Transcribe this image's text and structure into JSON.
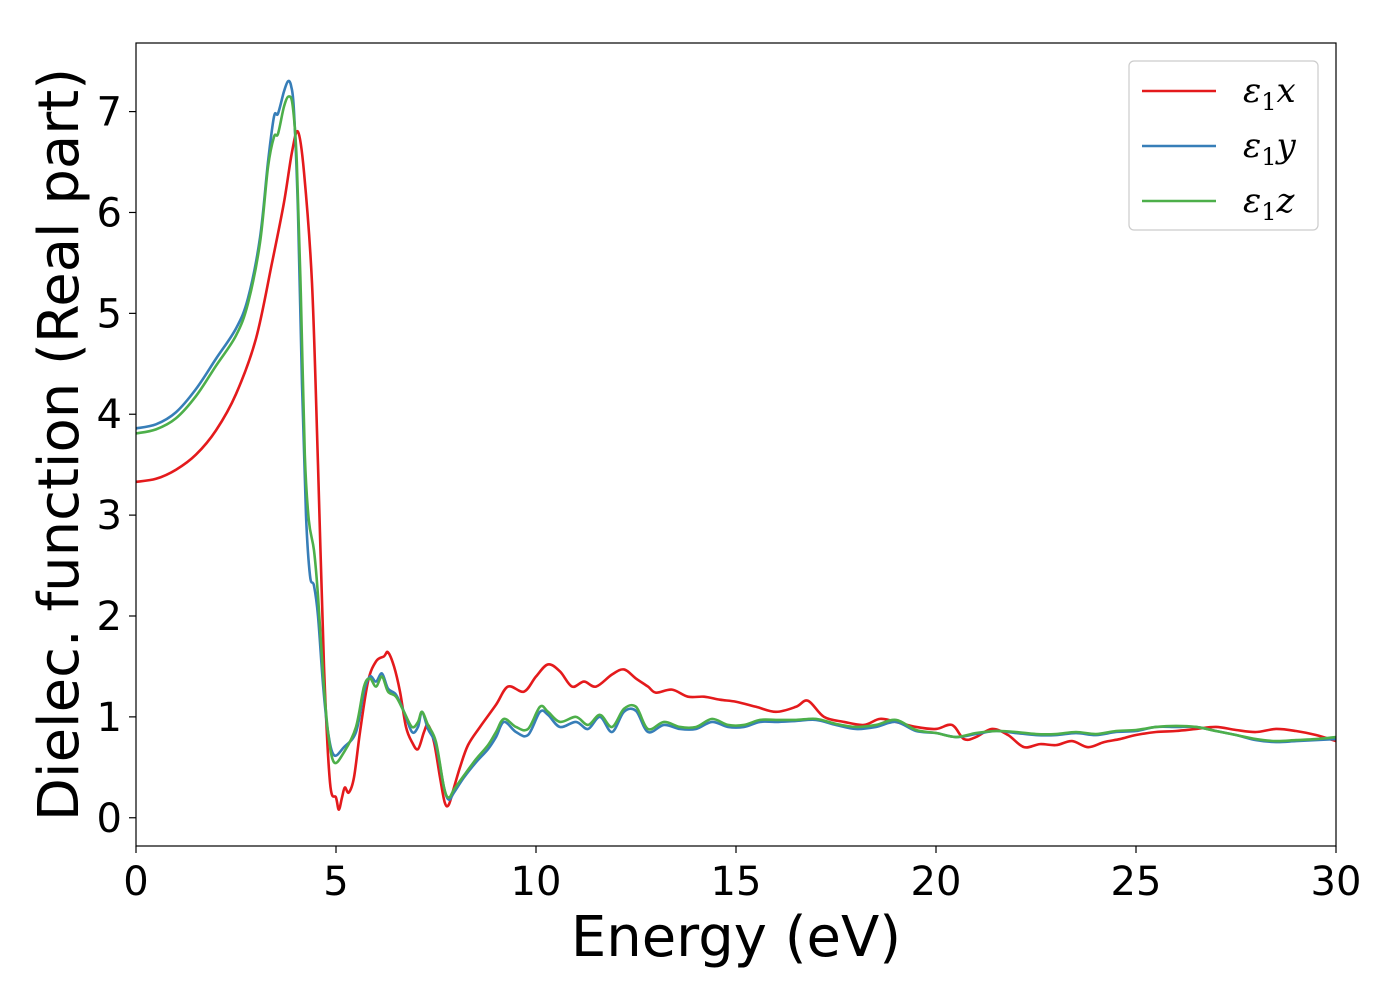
{
  "chart_data": {
    "type": "line",
    "xlabel": "Energy (eV)",
    "ylabel": "Dielec. function (Real part)",
    "xlim": [
      0,
      30
    ],
    "ylim": [
      -0.28,
      7.68
    ],
    "xticks": [
      0,
      5,
      10,
      15,
      20,
      25,
      30
    ],
    "yticks": [
      0,
      1,
      2,
      3,
      4,
      5,
      6,
      7
    ],
    "grid": false,
    "legend_position": "top-right",
    "series": [
      {
        "name": "ε1x",
        "legend": {
          "base": "ε",
          "sub": "1",
          "var": "x"
        },
        "color": "#e41a1c",
        "points": [
          [
            0,
            3.33
          ],
          [
            0.5,
            3.36
          ],
          [
            1.0,
            3.45
          ],
          [
            1.5,
            3.6
          ],
          [
            2.0,
            3.84
          ],
          [
            2.5,
            4.2
          ],
          [
            3.0,
            4.75
          ],
          [
            3.4,
            5.5
          ],
          [
            3.7,
            6.1
          ],
          [
            3.9,
            6.6
          ],
          [
            4.05,
            6.8
          ],
          [
            4.2,
            6.4
          ],
          [
            4.4,
            5.3
          ],
          [
            4.55,
            3.5
          ],
          [
            4.7,
            1.5
          ],
          [
            4.85,
            0.35
          ],
          [
            5.0,
            0.2
          ],
          [
            5.07,
            0.08
          ],
          [
            5.15,
            0.2
          ],
          [
            5.22,
            0.3
          ],
          [
            5.32,
            0.25
          ],
          [
            5.45,
            0.4
          ],
          [
            5.6,
            0.85
          ],
          [
            5.8,
            1.35
          ],
          [
            6.0,
            1.55
          ],
          [
            6.2,
            1.6
          ],
          [
            6.3,
            1.64
          ],
          [
            6.45,
            1.5
          ],
          [
            6.6,
            1.25
          ],
          [
            6.75,
            0.9
          ],
          [
            6.9,
            0.75
          ],
          [
            7.05,
            0.68
          ],
          [
            7.2,
            0.85
          ],
          [
            7.3,
            0.92
          ],
          [
            7.45,
            0.75
          ],
          [
            7.6,
            0.4
          ],
          [
            7.72,
            0.15
          ],
          [
            7.82,
            0.13
          ],
          [
            7.95,
            0.3
          ],
          [
            8.1,
            0.5
          ],
          [
            8.3,
            0.72
          ],
          [
            8.6,
            0.9
          ],
          [
            9.0,
            1.12
          ],
          [
            9.3,
            1.3
          ],
          [
            9.7,
            1.25
          ],
          [
            10.0,
            1.4
          ],
          [
            10.3,
            1.52
          ],
          [
            10.6,
            1.45
          ],
          [
            10.9,
            1.3
          ],
          [
            11.2,
            1.35
          ],
          [
            11.5,
            1.3
          ],
          [
            11.9,
            1.42
          ],
          [
            12.2,
            1.47
          ],
          [
            12.5,
            1.38
          ],
          [
            12.8,
            1.3
          ],
          [
            13.0,
            1.24
          ],
          [
            13.4,
            1.27
          ],
          [
            13.8,
            1.2
          ],
          [
            14.2,
            1.2
          ],
          [
            14.6,
            1.17
          ],
          [
            15.0,
            1.15
          ],
          [
            15.5,
            1.1
          ],
          [
            16.0,
            1.05
          ],
          [
            16.5,
            1.1
          ],
          [
            16.8,
            1.16
          ],
          [
            17.2,
            1.0
          ],
          [
            17.7,
            0.95
          ],
          [
            18.2,
            0.92
          ],
          [
            18.6,
            0.98
          ],
          [
            19.0,
            0.95
          ],
          [
            19.5,
            0.9
          ],
          [
            20.0,
            0.88
          ],
          [
            20.4,
            0.92
          ],
          [
            20.7,
            0.78
          ],
          [
            21.0,
            0.8
          ],
          [
            21.4,
            0.88
          ],
          [
            21.8,
            0.82
          ],
          [
            22.2,
            0.7
          ],
          [
            22.6,
            0.73
          ],
          [
            23.0,
            0.72
          ],
          [
            23.4,
            0.76
          ],
          [
            23.8,
            0.7
          ],
          [
            24.2,
            0.75
          ],
          [
            24.6,
            0.78
          ],
          [
            25.0,
            0.82
          ],
          [
            25.5,
            0.85
          ],
          [
            26.0,
            0.86
          ],
          [
            26.5,
            0.88
          ],
          [
            27.0,
            0.9
          ],
          [
            27.5,
            0.87
          ],
          [
            28.0,
            0.85
          ],
          [
            28.5,
            0.88
          ],
          [
            29.0,
            0.86
          ],
          [
            29.5,
            0.82
          ],
          [
            30.0,
            0.76
          ]
        ]
      },
      {
        "name": "ε1y",
        "legend": {
          "base": "ε",
          "sub": "1",
          "var": "y"
        },
        "color": "#377eb8",
        "points": [
          [
            0,
            3.86
          ],
          [
            0.5,
            3.9
          ],
          [
            1.0,
            4.02
          ],
          [
            1.5,
            4.25
          ],
          [
            2.0,
            4.55
          ],
          [
            2.5,
            4.85
          ],
          [
            2.8,
            5.15
          ],
          [
            3.1,
            5.75
          ],
          [
            3.3,
            6.5
          ],
          [
            3.45,
            6.95
          ],
          [
            3.55,
            6.98
          ],
          [
            3.7,
            7.2
          ],
          [
            3.8,
            7.3
          ],
          [
            3.88,
            7.25
          ],
          [
            3.95,
            7.0
          ],
          [
            4.05,
            6.0
          ],
          [
            4.15,
            4.3
          ],
          [
            4.25,
            3.0
          ],
          [
            4.35,
            2.4
          ],
          [
            4.45,
            2.3
          ],
          [
            4.55,
            2.0
          ],
          [
            4.68,
            1.3
          ],
          [
            4.8,
            0.85
          ],
          [
            4.95,
            0.62
          ],
          [
            5.2,
            0.7
          ],
          [
            5.5,
            0.85
          ],
          [
            5.7,
            1.25
          ],
          [
            5.85,
            1.4
          ],
          [
            6.0,
            1.35
          ],
          [
            6.15,
            1.43
          ],
          [
            6.3,
            1.28
          ],
          [
            6.5,
            1.22
          ],
          [
            6.7,
            1.05
          ],
          [
            6.9,
            0.85
          ],
          [
            7.05,
            0.9
          ],
          [
            7.15,
            1.05
          ],
          [
            7.3,
            0.88
          ],
          [
            7.5,
            0.72
          ],
          [
            7.7,
            0.3
          ],
          [
            7.82,
            0.18
          ],
          [
            7.95,
            0.25
          ],
          [
            8.2,
            0.4
          ],
          [
            8.5,
            0.55
          ],
          [
            8.8,
            0.68
          ],
          [
            9.0,
            0.8
          ],
          [
            9.2,
            0.95
          ],
          [
            9.5,
            0.85
          ],
          [
            9.8,
            0.82
          ],
          [
            10.1,
            1.05
          ],
          [
            10.3,
            1.02
          ],
          [
            10.6,
            0.9
          ],
          [
            11.0,
            0.95
          ],
          [
            11.3,
            0.88
          ],
          [
            11.6,
            1.0
          ],
          [
            11.9,
            0.85
          ],
          [
            12.2,
            1.05
          ],
          [
            12.5,
            1.06
          ],
          [
            12.8,
            0.85
          ],
          [
            13.2,
            0.92
          ],
          [
            13.6,
            0.88
          ],
          [
            14.0,
            0.88
          ],
          [
            14.4,
            0.95
          ],
          [
            14.8,
            0.9
          ],
          [
            15.2,
            0.9
          ],
          [
            15.6,
            0.95
          ],
          [
            16.0,
            0.95
          ],
          [
            16.5,
            0.96
          ],
          [
            17.0,
            0.97
          ],
          [
            17.5,
            0.92
          ],
          [
            18.0,
            0.88
          ],
          [
            18.5,
            0.9
          ],
          [
            19.0,
            0.95
          ],
          [
            19.5,
            0.86
          ],
          [
            20.0,
            0.84
          ],
          [
            20.5,
            0.8
          ],
          [
            21.0,
            0.83
          ],
          [
            21.5,
            0.86
          ],
          [
            22.0,
            0.84
          ],
          [
            22.5,
            0.82
          ],
          [
            23.0,
            0.82
          ],
          [
            23.5,
            0.84
          ],
          [
            24.0,
            0.82
          ],
          [
            24.5,
            0.85
          ],
          [
            25.0,
            0.86
          ],
          [
            25.5,
            0.9
          ],
          [
            26.0,
            0.9
          ],
          [
            26.5,
            0.9
          ],
          [
            27.0,
            0.86
          ],
          [
            27.5,
            0.82
          ],
          [
            28.0,
            0.77
          ],
          [
            28.5,
            0.75
          ],
          [
            29.0,
            0.76
          ],
          [
            29.5,
            0.77
          ],
          [
            30.0,
            0.78
          ]
        ]
      },
      {
        "name": "ε1z",
        "legend": {
          "base": "ε",
          "sub": "1",
          "var": "z"
        },
        "color": "#4daf4a",
        "points": [
          [
            0,
            3.81
          ],
          [
            0.5,
            3.85
          ],
          [
            1.0,
            3.96
          ],
          [
            1.5,
            4.18
          ],
          [
            2.0,
            4.48
          ],
          [
            2.5,
            4.78
          ],
          [
            2.8,
            5.1
          ],
          [
            3.1,
            5.7
          ],
          [
            3.3,
            6.45
          ],
          [
            3.45,
            6.75
          ],
          [
            3.55,
            6.78
          ],
          [
            3.7,
            7.05
          ],
          [
            3.82,
            7.15
          ],
          [
            3.92,
            7.05
          ],
          [
            4.02,
            6.5
          ],
          [
            4.12,
            5.2
          ],
          [
            4.22,
            3.6
          ],
          [
            4.32,
            2.95
          ],
          [
            4.45,
            2.65
          ],
          [
            4.55,
            2.2
          ],
          [
            4.68,
            1.4
          ],
          [
            4.8,
            0.85
          ],
          [
            4.95,
            0.55
          ],
          [
            5.2,
            0.65
          ],
          [
            5.5,
            0.9
          ],
          [
            5.7,
            1.3
          ],
          [
            5.85,
            1.38
          ],
          [
            6.0,
            1.3
          ],
          [
            6.15,
            1.4
          ],
          [
            6.3,
            1.25
          ],
          [
            6.5,
            1.2
          ],
          [
            6.7,
            1.05
          ],
          [
            6.9,
            0.9
          ],
          [
            7.05,
            0.95
          ],
          [
            7.15,
            1.05
          ],
          [
            7.3,
            0.92
          ],
          [
            7.5,
            0.75
          ],
          [
            7.7,
            0.3
          ],
          [
            7.82,
            0.2
          ],
          [
            7.95,
            0.28
          ],
          [
            8.2,
            0.42
          ],
          [
            8.5,
            0.58
          ],
          [
            8.8,
            0.72
          ],
          [
            9.0,
            0.85
          ],
          [
            9.2,
            0.98
          ],
          [
            9.5,
            0.9
          ],
          [
            9.8,
            0.88
          ],
          [
            10.1,
            1.1
          ],
          [
            10.3,
            1.05
          ],
          [
            10.6,
            0.95
          ],
          [
            11.0,
            1.0
          ],
          [
            11.3,
            0.92
          ],
          [
            11.6,
            1.02
          ],
          [
            11.9,
            0.9
          ],
          [
            12.2,
            1.08
          ],
          [
            12.5,
            1.1
          ],
          [
            12.8,
            0.88
          ],
          [
            13.2,
            0.95
          ],
          [
            13.6,
            0.9
          ],
          [
            14.0,
            0.9
          ],
          [
            14.4,
            0.98
          ],
          [
            14.8,
            0.92
          ],
          [
            15.2,
            0.92
          ],
          [
            15.6,
            0.97
          ],
          [
            16.0,
            0.97
          ],
          [
            16.5,
            0.97
          ],
          [
            17.0,
            0.98
          ],
          [
            17.5,
            0.93
          ],
          [
            18.0,
            0.9
          ],
          [
            18.5,
            0.92
          ],
          [
            19.0,
            0.97
          ],
          [
            19.5,
            0.87
          ],
          [
            20.0,
            0.84
          ],
          [
            20.5,
            0.8
          ],
          [
            21.0,
            0.84
          ],
          [
            21.5,
            0.86
          ],
          [
            22.0,
            0.85
          ],
          [
            22.5,
            0.83
          ],
          [
            23.0,
            0.83
          ],
          [
            23.5,
            0.85
          ],
          [
            24.0,
            0.83
          ],
          [
            24.5,
            0.86
          ],
          [
            25.0,
            0.87
          ],
          [
            25.5,
            0.9
          ],
          [
            26.0,
            0.91
          ],
          [
            26.5,
            0.9
          ],
          [
            27.0,
            0.86
          ],
          [
            27.5,
            0.82
          ],
          [
            28.0,
            0.78
          ],
          [
            28.5,
            0.76
          ],
          [
            29.0,
            0.77
          ],
          [
            29.5,
            0.78
          ],
          [
            30.0,
            0.8
          ]
        ]
      }
    ]
  }
}
